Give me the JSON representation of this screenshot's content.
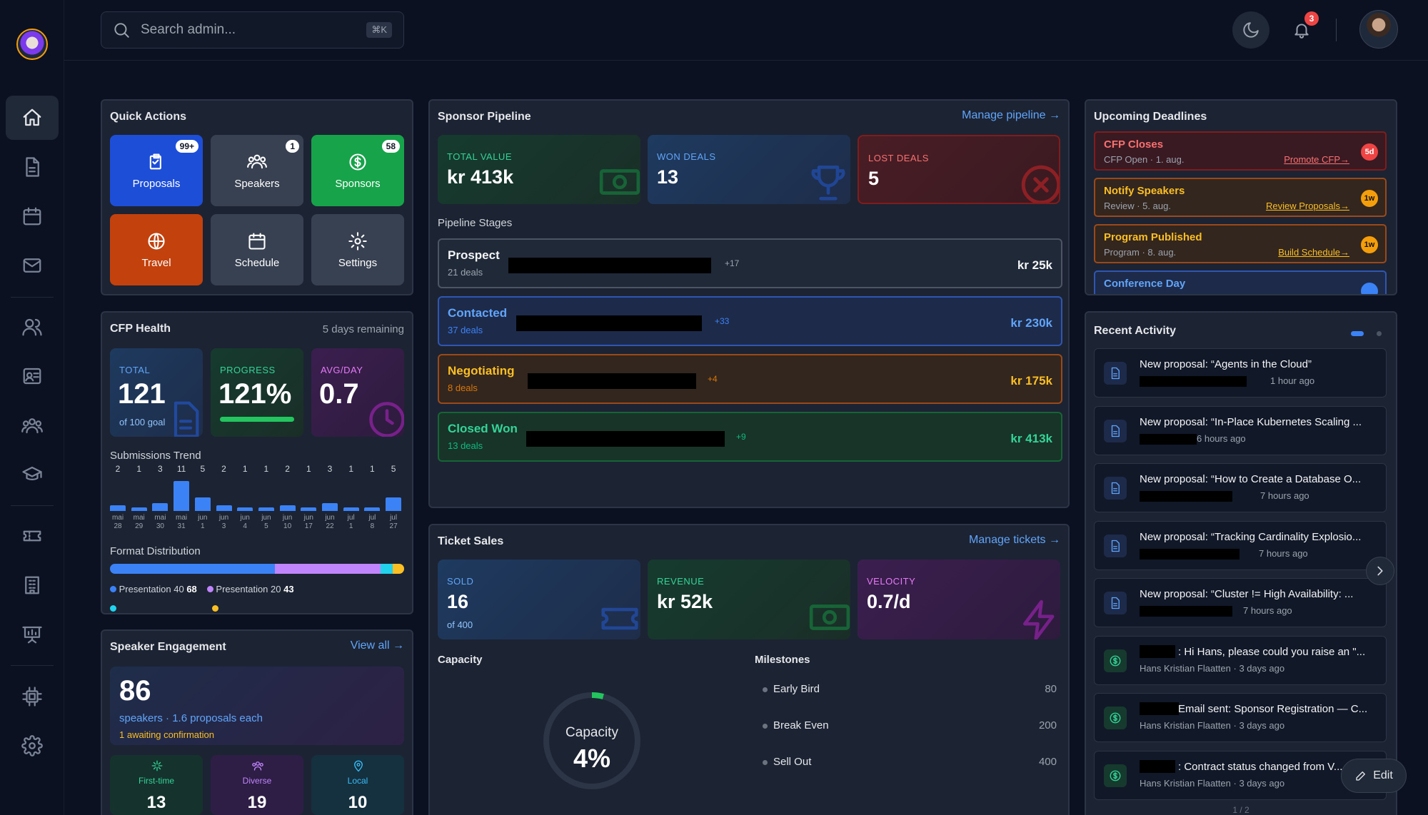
{
  "search": {
    "placeholder": "Search admin...",
    "shortcut": "⌘K"
  },
  "header": {
    "notification_count": "3"
  },
  "sidebar": {
    "items": [
      "home-icon",
      "file-icon",
      "calendar-icon",
      "mail-icon",
      "users-icon",
      "id-card-icon",
      "group-icon",
      "graduation-cap-icon",
      "ticket-icon",
      "building-icon",
      "presentation-icon",
      "chip-icon",
      "gear-icon"
    ]
  },
  "quick_actions": {
    "title": "Quick Actions",
    "items": [
      {
        "label": "Proposals",
        "badge": "99+",
        "icon": "clipboard-icon",
        "color": "#1d4ed8"
      },
      {
        "label": "Speakers",
        "badge": "1",
        "icon": "users-icon",
        "color": "#374151"
      },
      {
        "label": "Sponsors",
        "badge": "58",
        "icon": "dollar-icon",
        "color": "#16a34a"
      },
      {
        "label": "Travel",
        "badge": "",
        "icon": "globe-icon",
        "color": "#c2410c"
      },
      {
        "label": "Schedule",
        "badge": "",
        "icon": "calendar-icon",
        "color": "#374151"
      },
      {
        "label": "Settings",
        "badge": "",
        "icon": "gear-icon",
        "color": "#374151"
      }
    ]
  },
  "cfp_health": {
    "title": "CFP Health",
    "remaining": "5 days remaining",
    "total_label": "TOTAL",
    "total_value": "121",
    "total_sub": "of 100 goal",
    "progress_label": "PROGRESS",
    "progress_value": "121%",
    "progress_fill": 1.0,
    "avg_label": "AVG/DAY",
    "avg_value": "0.7",
    "trend_title": "Submissions Trend",
    "trend": [
      {
        "count": 2,
        "m": "mai",
        "d": "28"
      },
      {
        "count": 1,
        "m": "mai",
        "d": "29"
      },
      {
        "count": 3,
        "m": "mai",
        "d": "30"
      },
      {
        "count": 11,
        "m": "mai",
        "d": "31"
      },
      {
        "count": 5,
        "m": "jun",
        "d": "1"
      },
      {
        "count": 2,
        "m": "jun",
        "d": "3"
      },
      {
        "count": 1,
        "m": "jun",
        "d": "4"
      },
      {
        "count": 1,
        "m": "jun",
        "d": "5"
      },
      {
        "count": 2,
        "m": "jun",
        "d": "10"
      },
      {
        "count": 1,
        "m": "jun",
        "d": "17"
      },
      {
        "count": 3,
        "m": "jun",
        "d": "22"
      },
      {
        "count": 1,
        "m": "jul",
        "d": "1"
      },
      {
        "count": 1,
        "m": "jul",
        "d": "8"
      },
      {
        "count": 5,
        "m": "jul",
        "d": "27"
      }
    ],
    "format_title": "Format Distribution",
    "formats": [
      {
        "name": "Presentation 40",
        "count": "68",
        "color": "#3b82f6"
      },
      {
        "name": "Presentation 20",
        "count": "43",
        "color": "#c084fc"
      },
      {
        "name": "",
        "count": "",
        "color": "#22d3ee"
      },
      {
        "name": "",
        "count": "",
        "color": "#fbbf24"
      }
    ],
    "format_fractions": [
      0.56,
      0.36,
      0.04,
      0.04
    ]
  },
  "speaker_engagement": {
    "title": "Speaker Engagement",
    "link": "View all →",
    "count": "86",
    "sub": "speakers · 1.6 proposals each",
    "awaiting": "1 awaiting confirmation",
    "tiles": [
      {
        "label": "First-time",
        "value": "13",
        "icon": "sparkle-icon",
        "color": "#34d399"
      },
      {
        "label": "Diverse",
        "value": "19",
        "icon": "group-icon",
        "color": "#c084fc"
      },
      {
        "label": "Local",
        "value": "10",
        "icon": "pin-icon",
        "color": "#38bdf8"
      }
    ]
  },
  "sponsor_pipeline": {
    "title": "Sponsor Pipeline",
    "link": "Manage pipeline →",
    "stats": [
      {
        "label": "TOTAL VALUE",
        "value": "kr 413k"
      },
      {
        "label": "WON DEALS",
        "value": "13"
      },
      {
        "label": "LOST DEALS",
        "value": "5"
      }
    ],
    "stages_title": "Pipeline Stages",
    "stages": [
      {
        "name": "Prospect",
        "deals": "21 deals",
        "delta": "+17",
        "amount": "kr 25k"
      },
      {
        "name": "Contacted",
        "deals": "37 deals",
        "delta": "+33",
        "amount": "kr 230k"
      },
      {
        "name": "Negotiating",
        "deals": "8 deals",
        "delta": "+4",
        "amount": "kr 175k"
      },
      {
        "name": "Closed Won",
        "deals": "13 deals",
        "delta": "+9",
        "amount": "kr 413k"
      }
    ]
  },
  "ticket_sales": {
    "title": "Ticket Sales",
    "link": "Manage tickets →",
    "stats": [
      {
        "label": "SOLD",
        "value": "16",
        "sub": "of 400"
      },
      {
        "label": "REVENUE",
        "value": "kr 52k",
        "sub": ""
      },
      {
        "label": "VELOCITY",
        "value": "0.7/d",
        "sub": ""
      }
    ],
    "capacity_title": "Capacity",
    "capacity_label": "Capacity",
    "capacity_value": "4%",
    "capacity_fill": 0.04,
    "milestones_title": "Milestones",
    "milestones": [
      {
        "name": "Early Bird",
        "value": "80"
      },
      {
        "name": "Break Even",
        "value": "200"
      },
      {
        "name": "Sell Out",
        "value": "400"
      }
    ]
  },
  "deadlines": {
    "title": "Upcoming Deadlines",
    "items": [
      {
        "title": "CFP Closes",
        "sub": "CFP Open  ·  1. aug.",
        "link": "Promote CFP→",
        "badge": "5d"
      },
      {
        "title": "Notify Speakers",
        "sub": "Review  ·  5. aug.",
        "link": "Review Proposals→",
        "badge": "1w"
      },
      {
        "title": "Program Published",
        "sub": "Program  ·  8. aug.",
        "link": "Build Schedule→",
        "badge": "1w"
      },
      {
        "title": "Conference Day",
        "sub": "",
        "link": "",
        "badge": ""
      }
    ]
  },
  "activity": {
    "title": "Recent Activity",
    "pager": "1 / 2",
    "edit": "Edit",
    "items": [
      {
        "title": "New proposal: “Agents in the Cloud”",
        "meta": "1 hour ago",
        "type": "doc"
      },
      {
        "title": "New proposal: “In-Place Kubernetes Scaling ...",
        "meta": "6 hours ago",
        "type": "doc"
      },
      {
        "title": "New proposal: “How to Create a Database O...",
        "meta": "7 hours ago",
        "type": "doc"
      },
      {
        "title": "New proposal: “Tracking Cardinality Explosio...",
        "meta": "7 hours ago",
        "type": "doc"
      },
      {
        "title": "New proposal: “Cluster != High Availability: ...",
        "meta": "7 hours ago",
        "type": "doc"
      },
      {
        "title": ": Hi Hans, please could you raise an \"...",
        "meta": "Hans Kristian Flaatten  ·  3 days ago",
        "type": "dollar"
      },
      {
        "title": " Email sent: Sponsor Registration — C...",
        "meta": "Hans Kristian Flaatten  ·  3 days ago",
        "type": "dollar"
      },
      {
        "title": ": Contract status changed from V...",
        "meta": "Hans Kristian Flaatten  ·  3 days ago",
        "type": "dollar"
      }
    ]
  }
}
